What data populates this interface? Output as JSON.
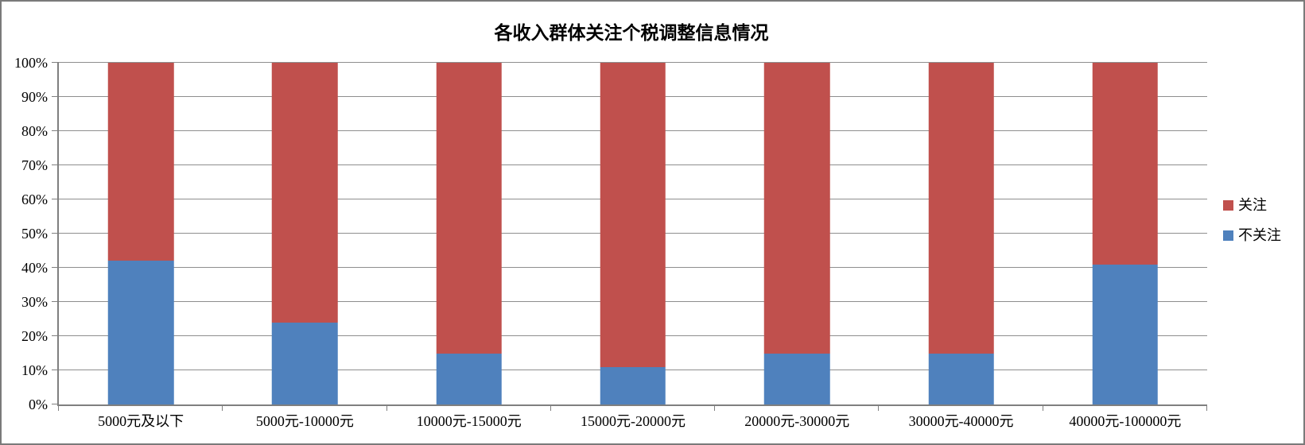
{
  "window": {
    "background": "#ffffff",
    "frame_border_color": "#7a7a7a"
  },
  "chart_data": {
    "type": "bar",
    "variant": "100%-stacked-column",
    "title": "各收入群体关注个税调整信息情况",
    "categories": [
      "5000元及以下",
      "5000元-10000元",
      "10000元-15000元",
      "15000元-20000元",
      "20000元-30000元",
      "30000元-40000元",
      "40000元-100000元"
    ],
    "series": [
      {
        "name": "不关注",
        "color": "#4F81BD",
        "values": [
          42,
          24,
          15,
          11,
          15,
          15,
          41
        ]
      },
      {
        "name": "关注",
        "color": "#C0504D",
        "values": [
          58,
          76,
          85,
          89,
          85,
          85,
          59
        ]
      }
    ],
    "stack_order": "bottom-to-top",
    "xlabel": "",
    "ylabel": "",
    "ylim": [
      0,
      100
    ],
    "ytick_step": 10,
    "ytick_labels": [
      "0%",
      "10%",
      "20%",
      "30%",
      "40%",
      "50%",
      "60%",
      "70%",
      "80%",
      "90%",
      "100%"
    ],
    "grid": true,
    "gridline_color": "#8e8e8e",
    "axis_color": "#7f7f7f",
    "legend": {
      "position": "right",
      "entries": [
        {
          "label": "关注",
          "color": "#C0504D"
        },
        {
          "label": "不关注",
          "color": "#4F81BD"
        }
      ]
    }
  }
}
